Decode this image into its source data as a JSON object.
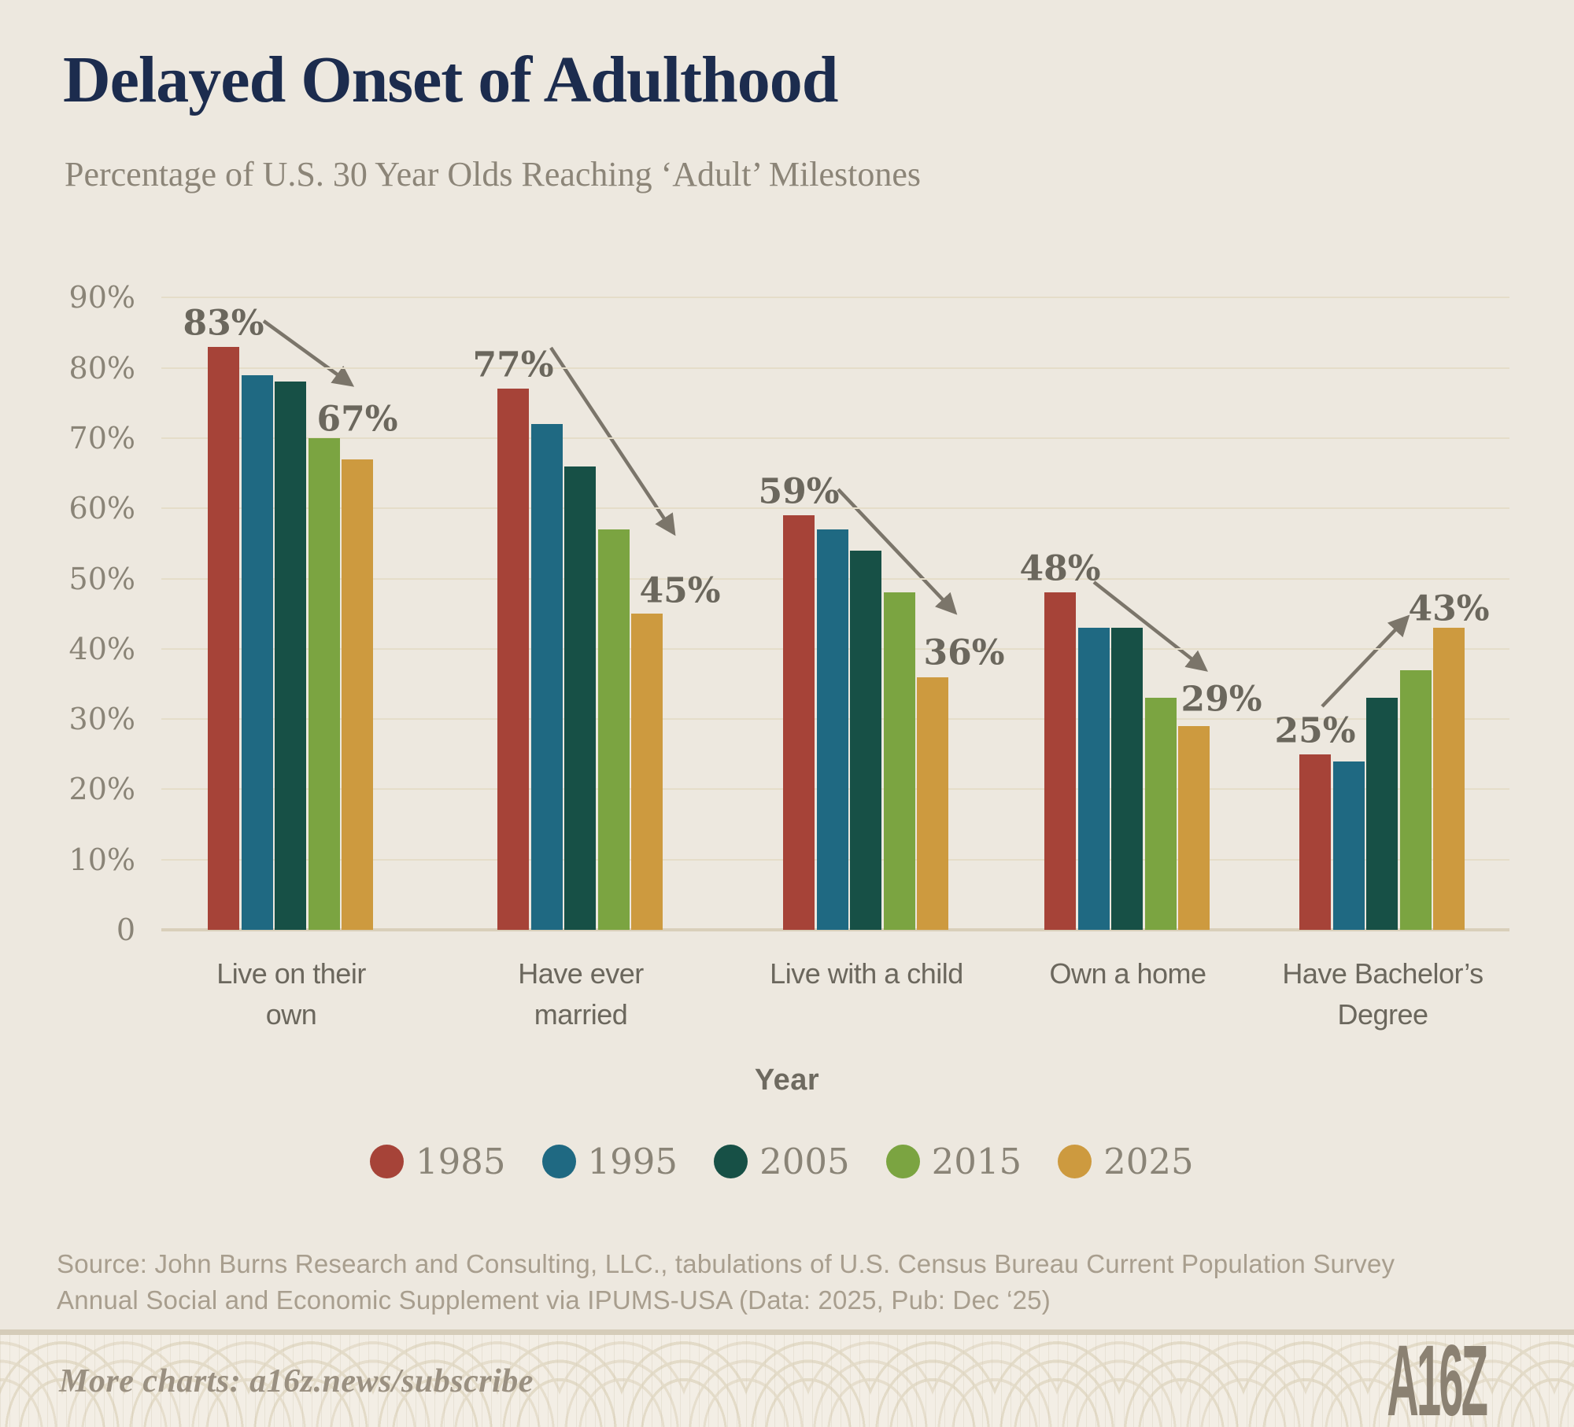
{
  "header": {
    "title": "Delayed Onset of Adulthood",
    "subtitle": "Percentage of U.S. 30 Year Olds Reaching ‘Adult’ Milestones"
  },
  "chart_data": {
    "type": "bar",
    "title": "Delayed Onset of Adulthood",
    "xlabel": "Year",
    "ylabel": "",
    "ylim": [
      0,
      90
    ],
    "grid": true,
    "legend_position": "bottom",
    "categories": [
      "Live on their\nown",
      "Have ever\nmarried",
      "Live with a child",
      "Own a home",
      "Have Bachelor’s\nDegree"
    ],
    "y_ticks": [
      {
        "label": "90%",
        "value": 90
      },
      {
        "label": "80%",
        "value": 80
      },
      {
        "label": "70%",
        "value": 70
      },
      {
        "label": "60%",
        "value": 60
      },
      {
        "label": "50%",
        "value": 50
      },
      {
        "label": "40%",
        "value": 40
      },
      {
        "label": "30%",
        "value": 30
      },
      {
        "label": "20%",
        "value": 20
      },
      {
        "label": "10%",
        "value": 10
      },
      {
        "label": "0",
        "value": 0
      }
    ],
    "series": [
      {
        "name": "1985",
        "color": "#A64338",
        "values": [
          83,
          77,
          59,
          48,
          25
        ]
      },
      {
        "name": "1995",
        "color": "#1F6982",
        "values": [
          79,
          72,
          57,
          43,
          24
        ]
      },
      {
        "name": "2005",
        "color": "#175046",
        "values": [
          78,
          66,
          54,
          43,
          33
        ]
      },
      {
        "name": "2015",
        "color": "#7BA441",
        "values": [
          70,
          57,
          48,
          33,
          37
        ]
      },
      {
        "name": "2025",
        "color": "#CD9A3F",
        "values": [
          67,
          45,
          36,
          29,
          43
        ]
      }
    ],
    "annotations": [
      {
        "group": 0,
        "start_text": "83%",
        "end_text": "67%",
        "end_dx": 0,
        "end_dy": -51,
        "arrow": [
          335,
          408,
          445,
          488
        ]
      },
      {
        "group": 1,
        "start_text": "77%",
        "end_text": "45%",
        "end_dx": 42,
        "end_dy": -29,
        "arrow": [
          700,
          442,
          855,
          676
        ]
      },
      {
        "group": 2,
        "start_text": "59%",
        "end_text": "36%",
        "end_dx": 40,
        "end_dy": -31,
        "arrow": [
          1065,
          622,
          1212,
          777
        ]
      },
      {
        "group": 3,
        "start_text": "48%",
        "end_text": "29%",
        "end_dx": 35,
        "end_dy": -34,
        "arrow": [
          1390,
          740,
          1530,
          850
        ]
      },
      {
        "group": 4,
        "start_text": "25%",
        "end_text": "43%",
        "end_dx": 0,
        "end_dy": -24,
        "arrow": [
          1680,
          898,
          1787,
          786
        ]
      }
    ],
    "arrow_color": "#7B756A"
  },
  "source_lines": [
    "Source: John Burns Research and Consulting, LLC., tabulations of U.S. Census Bureau Current Population Survey",
    "Annual Social and Economic Supplement via IPUMS-USA (Data: 2025, Pub: Dec ‘25)"
  ],
  "footer": {
    "text": "More charts: a16z.news/subscribe",
    "logo": "A16Z"
  }
}
